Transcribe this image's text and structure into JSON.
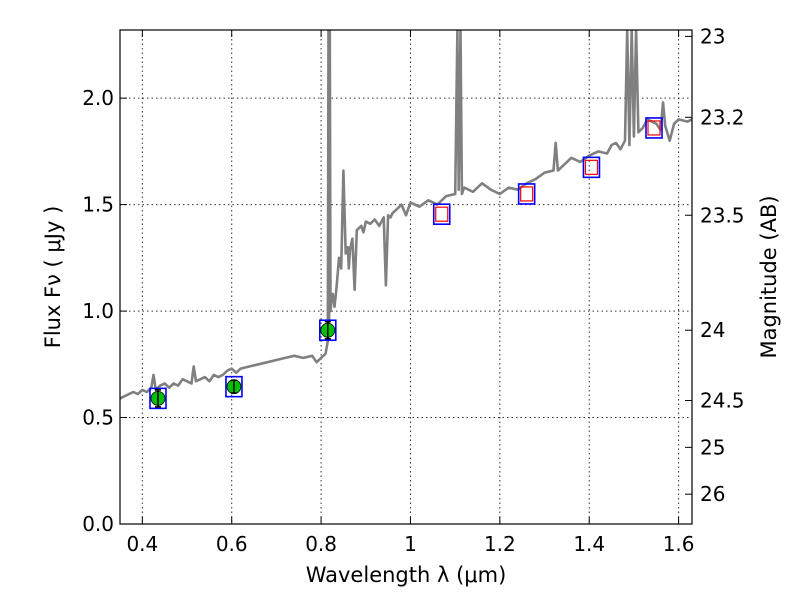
{
  "chart_data": {
    "type": "line",
    "title": "",
    "xlabel": "Wavelength  λ (μm)",
    "ylabel": "Flux  Fν  ( μJy )",
    "ylabel_right": "Magnitude (AB)",
    "xlim": [
      0.35,
      1.63
    ],
    "ylim": [
      0.0,
      2.32
    ],
    "grid": true,
    "x_ticks": [
      0.4,
      0.6,
      0.8,
      1.0,
      1.2,
      1.4,
      1.6
    ],
    "x_tick_labels": [
      "0.4",
      "0.6",
      "0.8",
      "1",
      "1.2",
      "1.4",
      "1.6"
    ],
    "y_ticks": [
      0.0,
      0.5,
      1.0,
      1.5,
      2.0
    ],
    "y_tick_labels": [
      "0.0",
      "0.5",
      "1.0",
      "1.5",
      "2.0"
    ],
    "right_ticks": [
      {
        "label": "23",
        "flux": 2.29
      },
      {
        "label": "23.2",
        "flux": 1.91
      },
      {
        "label": "23.5",
        "flux": 1.45
      },
      {
        "label": "24",
        "flux": 0.91
      },
      {
        "label": "24.5",
        "flux": 0.58
      },
      {
        "label": "25",
        "flux": 0.36
      },
      {
        "label": "26",
        "flux": 0.14
      }
    ],
    "series": [
      {
        "color": "#808080",
        "x": [
          0.35,
          0.36,
          0.37,
          0.38,
          0.39,
          0.4,
          0.41,
          0.42,
          0.425,
          0.43,
          0.44,
          0.45,
          0.46,
          0.47,
          0.48,
          0.49,
          0.5,
          0.51,
          0.515,
          0.52,
          0.53,
          0.54,
          0.55,
          0.56,
          0.57,
          0.58,
          0.59,
          0.6,
          0.61,
          0.62,
          0.64,
          0.66,
          0.68,
          0.7,
          0.72,
          0.74,
          0.76,
          0.78,
          0.79,
          0.8,
          0.81,
          0.815,
          0.8165,
          0.818,
          0.8195,
          0.821,
          0.823,
          0.826,
          0.83,
          0.835,
          0.84,
          0.845,
          0.85,
          0.855,
          0.86,
          0.862,
          0.865,
          0.87,
          0.875,
          0.88,
          0.885,
          0.89,
          0.895,
          0.9,
          0.91,
          0.92,
          0.93,
          0.94,
          0.945,
          0.95,
          0.955,
          0.96,
          0.97,
          0.98,
          0.99,
          1.0,
          1.02,
          1.04,
          1.06,
          1.08,
          1.1,
          1.105,
          1.108,
          1.112,
          1.115,
          1.12,
          1.14,
          1.16,
          1.18,
          1.2,
          1.22,
          1.24,
          1.26,
          1.28,
          1.3,
          1.32,
          1.325,
          1.33,
          1.34,
          1.36,
          1.38,
          1.4,
          1.42,
          1.44,
          1.45,
          1.46,
          1.47,
          1.48,
          1.485,
          1.49,
          1.495,
          1.5,
          1.505,
          1.51,
          1.52,
          1.53,
          1.54,
          1.55,
          1.56,
          1.565,
          1.57,
          1.58,
          1.59,
          1.6,
          1.62,
          1.63
        ],
        "y": [
          0.59,
          0.6,
          0.61,
          0.62,
          0.61,
          0.63,
          0.62,
          0.64,
          0.7,
          0.63,
          0.65,
          0.66,
          0.64,
          0.66,
          0.65,
          0.68,
          0.67,
          0.66,
          0.74,
          0.67,
          0.68,
          0.69,
          0.67,
          0.7,
          0.69,
          0.7,
          0.72,
          0.73,
          0.71,
          0.73,
          0.74,
          0.75,
          0.76,
          0.77,
          0.78,
          0.79,
          0.78,
          0.79,
          0.76,
          0.78,
          0.8,
          0.86,
          2.32,
          0.95,
          2.32,
          1.0,
          1.05,
          1.08,
          1.02,
          1.12,
          1.25,
          1.2,
          1.66,
          1.27,
          1.3,
          1.2,
          1.29,
          1.34,
          1.1,
          1.38,
          1.39,
          1.4,
          1.37,
          1.42,
          1.41,
          1.43,
          1.4,
          1.44,
          1.12,
          1.45,
          1.44,
          1.46,
          1.48,
          1.5,
          1.45,
          1.51,
          1.49,
          1.52,
          1.5,
          1.54,
          1.55,
          2.32,
          1.57,
          2.32,
          1.55,
          1.58,
          1.56,
          1.6,
          1.57,
          1.55,
          1.58,
          1.57,
          1.6,
          1.62,
          1.65,
          1.66,
          1.79,
          1.66,
          1.68,
          1.72,
          1.7,
          1.73,
          1.75,
          1.74,
          1.78,
          1.79,
          1.76,
          1.8,
          2.32,
          1.78,
          2.32,
          1.82,
          2.32,
          1.84,
          1.86,
          1.9,
          1.89,
          1.88,
          1.85,
          1.98,
          1.87,
          1.8,
          1.88,
          1.9,
          1.89,
          1.9
        ]
      },
      {
        "marker": "green-circle-errorbar",
        "color": "#00c000",
        "x": [
          0.435,
          0.605,
          0.815
        ],
        "y": [
          0.59,
          0.645,
          0.91
        ],
        "yerr": [
          0.04,
          0.03,
          0.04
        ]
      },
      {
        "marker": "blue-square",
        "color": "#0000ff",
        "x": [
          0.435,
          0.605,
          0.815,
          1.07,
          1.26,
          1.405,
          1.545
        ],
        "y": [
          0.59,
          0.645,
          0.91,
          1.455,
          1.55,
          1.675,
          1.86
        ]
      },
      {
        "marker": "red-square",
        "color": "#ff0000",
        "x": [
          1.07,
          1.26,
          1.405,
          1.545
        ],
        "y": [
          1.455,
          1.55,
          1.675,
          1.86
        ]
      }
    ]
  }
}
